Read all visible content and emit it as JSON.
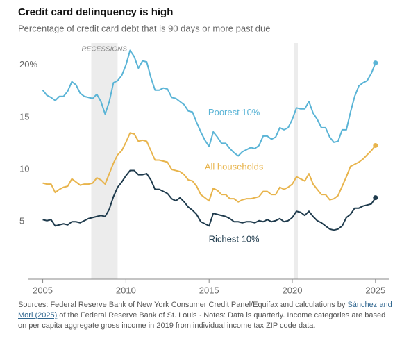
{
  "chart_data": {
    "type": "line",
    "title": "Credit card delinquency is high",
    "subtitle": "Percentage of credit card debt that is 90 days or more past due",
    "recession_label": "RECESSIONS",
    "recessions": [
      [
        2007.917,
        2009.5
      ],
      [
        2020.083,
        2020.333
      ]
    ],
    "x": [
      2005,
      2005.25,
      2005.5,
      2005.75,
      2006,
      2006.25,
      2006.5,
      2006.75,
      2007,
      2007.25,
      2007.5,
      2007.75,
      2008,
      2008.25,
      2008.5,
      2008.75,
      2009,
      2009.25,
      2009.5,
      2009.75,
      2010,
      2010.25,
      2010.5,
      2010.75,
      2011,
      2011.25,
      2011.5,
      2011.75,
      2012,
      2012.25,
      2012.5,
      2012.75,
      2013,
      2013.25,
      2013.5,
      2013.75,
      2014,
      2014.25,
      2014.5,
      2014.75,
      2015,
      2015.25,
      2015.5,
      2015.75,
      2016,
      2016.25,
      2016.5,
      2016.75,
      2017,
      2017.25,
      2017.5,
      2017.75,
      2018,
      2018.25,
      2018.5,
      2018.75,
      2019,
      2019.25,
      2019.5,
      2019.75,
      2020,
      2020.25,
      2020.5,
      2020.75,
      2021,
      2021.25,
      2021.5,
      2021.75,
      2022,
      2022.25,
      2022.5,
      2022.75,
      2023,
      2023.25,
      2023.5,
      2023.75,
      2024,
      2024.25,
      2024.5,
      2024.75,
      2025
    ],
    "series": [
      {
        "name": "Poorest 10%",
        "color": "#5ab4d6",
        "values": [
          17.6,
          17.1,
          16.9,
          16.6,
          17.0,
          17.0,
          17.5,
          18.4,
          18.1,
          17.3,
          17.0,
          16.9,
          16.8,
          17.2,
          16.5,
          15.3,
          16.5,
          18.3,
          18.5,
          19.0,
          20.0,
          21.4,
          20.8,
          19.7,
          20.4,
          20.3,
          18.8,
          17.6,
          17.6,
          17.8,
          17.7,
          16.9,
          16.8,
          16.5,
          16.2,
          15.6,
          15.5,
          14.5,
          13.6,
          12.8,
          12.2,
          13.6,
          13.1,
          12.5,
          12.5,
          12.0,
          11.6,
          11.3,
          11.7,
          11.9,
          12.1,
          12.0,
          12.3,
          13.2,
          13.2,
          12.9,
          13.1,
          14.0,
          13.8,
          14.0,
          14.8,
          15.9,
          15.8,
          15.8,
          16.5,
          15.4,
          14.8,
          14.0,
          14.0,
          13.1,
          12.6,
          12.7,
          13.8,
          13.8,
          15.5,
          17.0,
          18.0,
          18.3,
          18.5,
          19.2,
          20.2
        ]
      },
      {
        "name": "All households",
        "color": "#e8b44c",
        "values": [
          8.7,
          8.6,
          8.6,
          7.8,
          8.1,
          8.3,
          8.4,
          9.1,
          8.8,
          8.5,
          8.6,
          8.6,
          8.7,
          9.2,
          9.0,
          8.6,
          9.6,
          10.6,
          11.4,
          11.8,
          12.6,
          13.5,
          13.4,
          12.7,
          12.8,
          12.7,
          11.8,
          10.9,
          10.9,
          10.8,
          10.7,
          10.0,
          9.9,
          9.8,
          9.5,
          9.0,
          8.9,
          8.4,
          7.6,
          7.3,
          7.0,
          8.2,
          8.0,
          7.6,
          7.6,
          7.2,
          7.2,
          6.9,
          7.1,
          7.2,
          7.2,
          7.3,
          7.4,
          7.9,
          7.9,
          7.6,
          7.6,
          8.3,
          8.1,
          8.3,
          8.6,
          9.3,
          9.1,
          8.9,
          9.6,
          8.6,
          8.1,
          7.6,
          7.6,
          7.1,
          7.2,
          7.5,
          8.4,
          9.3,
          10.3,
          10.5,
          10.7,
          11.0,
          11.4,
          11.8,
          12.3
        ]
      },
      {
        "name": "Richest 10%",
        "color": "#1f3b4d",
        "values": [
          5.2,
          5.1,
          5.2,
          4.6,
          4.7,
          4.8,
          4.7,
          5.0,
          5.0,
          4.9,
          5.1,
          5.3,
          5.4,
          5.5,
          5.6,
          5.5,
          6.2,
          7.4,
          8.3,
          8.8,
          9.4,
          9.9,
          9.9,
          9.5,
          9.5,
          9.6,
          9.0,
          8.1,
          8.1,
          7.9,
          7.7,
          7.2,
          7.0,
          7.3,
          6.9,
          6.4,
          6.1,
          5.7,
          5.0,
          4.8,
          4.6,
          5.8,
          5.7,
          5.6,
          5.5,
          5.3,
          5.0,
          5.0,
          4.9,
          5.0,
          5.0,
          4.9,
          5.1,
          5.0,
          5.2,
          5.0,
          5.1,
          5.3,
          5.0,
          5.1,
          5.4,
          6.0,
          5.9,
          5.6,
          6.0,
          5.5,
          5.1,
          4.9,
          4.6,
          4.3,
          4.2,
          4.3,
          4.6,
          5.4,
          5.7,
          6.3,
          6.3,
          6.5,
          6.6,
          6.7,
          7.3
        ]
      }
    ],
    "xlim": [
      2004.1,
      2025.8
    ],
    "xticks": [
      2005,
      2010,
      2015,
      2020,
      2025
    ],
    "ylim": [
      -0.5,
      22.5
    ],
    "yticks": [
      5,
      10,
      15,
      {
        "value": 20,
        "label": "20%"
      }
    ],
    "grid": false,
    "source_prefix": "Sources: Federal Reserve Bank of New York Consumer Credit Panel/Equifax and calculations by ",
    "source_link": "Sánchez and Mori (2025)",
    "source_suffix": " of the Federal Reserve Bank of St. Louis · Notes: Data is quarterly. Income categories are based on per capita aggregate gross income in 2019 from individual income tax ZIP code data."
  }
}
